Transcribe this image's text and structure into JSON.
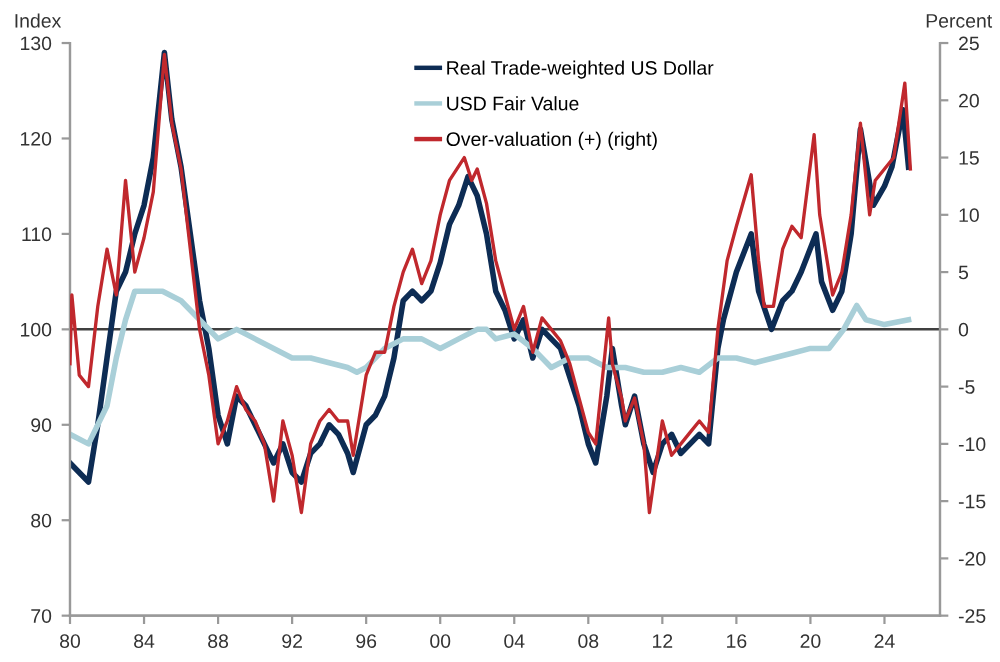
{
  "chart_data": {
    "type": "line",
    "ylabel": "Index",
    "y2label": "Percent",
    "xlim": [
      1980,
      2027
    ],
    "xticks": [
      {
        "value": 1980,
        "label": "80"
      },
      {
        "value": 1984,
        "label": "84"
      },
      {
        "value": 1988,
        "label": "88"
      },
      {
        "value": 1992,
        "label": "92"
      },
      {
        "value": 1996,
        "label": "96"
      },
      {
        "value": 2000,
        "label": "00"
      },
      {
        "value": 2004,
        "label": "04"
      },
      {
        "value": 2008,
        "label": "08"
      },
      {
        "value": 2012,
        "label": "12"
      },
      {
        "value": 2016,
        "label": "16"
      },
      {
        "value": 2020,
        "label": "20"
      },
      {
        "value": 2024,
        "label": "24"
      }
    ],
    "ylim": [
      70,
      130
    ],
    "yticks": [
      70,
      80,
      90,
      100,
      110,
      120,
      130
    ],
    "y2lim": [
      -25,
      25
    ],
    "y2ticks": [
      -25,
      -20,
      -15,
      -10,
      -5,
      0,
      5,
      10,
      15,
      20,
      25
    ],
    "grid": false,
    "legend": "top right",
    "marker": "none",
    "line_style": "solid",
    "ref_lines": [
      {
        "axis": "y",
        "value": 100,
        "color": "#404040"
      }
    ],
    "series": [
      {
        "name": "Real Trade-weighted US Dollar",
        "color": "#0d2c54",
        "x": [
          1980,
          1980.5,
          1981,
          1981.5,
          1982,
          1982.5,
          1983,
          1983.5,
          1984,
          1984.5,
          1985.1,
          1985.5,
          1986,
          1986.5,
          1987,
          1987.5,
          1988,
          1988.5,
          1989,
          1989.5,
          1990,
          1990.5,
          1991,
          1991.5,
          1992,
          1992.5,
          1993,
          1993.5,
          1994,
          1994.5,
          1995,
          1995.3,
          1996,
          1996.5,
          1997,
          1997.5,
          1998,
          1998.5,
          1999,
          1999.5,
          2000,
          2000.5,
          2001,
          2001.5,
          2002,
          2002.5,
          2003,
          2003.5,
          2004,
          2004.5,
          2005,
          2005.5,
          2006,
          2006.5,
          2007,
          2007.5,
          2008,
          2008.4,
          2009,
          2009.3,
          2009.8,
          2010,
          2010.5,
          2011,
          2011.5,
          2012,
          2012.5,
          2013,
          2013.5,
          2014,
          2014.5,
          2015,
          2015.3,
          2016,
          2016.8,
          2017.2,
          2017.9,
          2018.5,
          2019,
          2019.5,
          2020.3,
          2020.6,
          2021.2,
          2021.7,
          2022.2,
          2022.7,
          2023.4,
          2024,
          2024.4,
          2025,
          2025.3
        ],
        "values": [
          86,
          85,
          84,
          90,
          97,
          104,
          106,
          110,
          113,
          118,
          129,
          122,
          117,
          110,
          103,
          98,
          91,
          88,
          93,
          92,
          90,
          88,
          86,
          88,
          85,
          84,
          87,
          88,
          90,
          89,
          87,
          85,
          90,
          91,
          93,
          97,
          103,
          104,
          103,
          104,
          107,
          111,
          113,
          116,
          114,
          110,
          104,
          102,
          99,
          101,
          97,
          100,
          99,
          98,
          95,
          92,
          88,
          86,
          93,
          98,
          92,
          90,
          93,
          88,
          85,
          88,
          89,
          87,
          88,
          89,
          88,
          98,
          101,
          106,
          110,
          104,
          100,
          103,
          104,
          106,
          110,
          105,
          102,
          104,
          110,
          121,
          113,
          115,
          117,
          123,
          117
        ]
      },
      {
        "name": "USD Fair Value",
        "color": "#a9cfd8",
        "x": [
          1980,
          1981,
          1982,
          1982.5,
          1983,
          1983.5,
          1985,
          1986,
          1986.5,
          1987,
          1988,
          1989,
          1990,
          1991,
          1992,
          1993,
          1994,
          1995,
          1995.5,
          1996,
          1997,
          1998,
          1999,
          2000,
          2001,
          2002,
          2002.5,
          2003,
          2004,
          2005,
          2006,
          2007,
          2008,
          2009,
          2010,
          2011,
          2012,
          2013,
          2014,
          2015,
          2016,
          2017,
          2018,
          2019,
          2020,
          2021,
          2021.8,
          2022.5,
          2023,
          2024,
          2025.3
        ],
        "values": [
          89,
          88,
          92,
          97,
          101,
          104,
          104,
          103,
          102,
          101,
          99,
          100,
          99,
          98,
          97,
          97,
          96.5,
          96,
          95.5,
          96,
          98,
          99,
          99,
          98,
          99,
          100,
          100,
          99,
          99.5,
          98,
          96,
          97,
          97,
          96,
          96,
          95.5,
          95.5,
          96,
          95.5,
          97,
          97,
          96.5,
          97,
          97.5,
          98,
          98,
          100,
          102.5,
          101,
          100.5,
          101
        ]
      },
      {
        "name": "Over-valuation (+) (right)",
        "color": "#c0282d",
        "axis": "y2",
        "x": [
          1980,
          1980.1,
          1980.5,
          1981,
          1981.5,
          1982,
          1982.5,
          1983,
          1983.5,
          1984,
          1984.5,
          1985.1,
          1985.5,
          1986,
          1986.5,
          1987,
          1987.5,
          1988,
          1988.5,
          1989,
          1989.5,
          1990,
          1990.5,
          1991,
          1991.5,
          1992,
          1992.5,
          1993,
          1993.5,
          1994,
          1994.5,
          1995,
          1995.3,
          1996,
          1996.5,
          1997,
          1997.5,
          1998,
          1998.5,
          1999,
          1999.5,
          2000,
          2000.5,
          2001.3,
          2001.7,
          2002,
          2002.5,
          2003,
          2003.5,
          2004,
          2004.5,
          2005,
          2005.5,
          2006,
          2006.5,
          2007,
          2007.5,
          2008,
          2008.4,
          2009.1,
          2009.3,
          2009.8,
          2010,
          2010.5,
          2011,
          2011.3,
          2012,
          2012.5,
          2013,
          2013.5,
          2014,
          2014.5,
          2015,
          2015.5,
          2016,
          2016.8,
          2017.2,
          2017.5,
          2018,
          2018.5,
          2019,
          2019.5,
          2020.2,
          2020.5,
          2021.2,
          2021.7,
          2022.2,
          2022.7,
          2023.2,
          2023.5,
          2024,
          2024.5,
          2025.1,
          2025.4
        ],
        "values": [
          -3,
          3,
          -4,
          -5,
          2,
          7,
          3,
          13,
          5,
          8,
          12,
          24,
          18,
          14,
          7,
          0,
          -4,
          -10,
          -8,
          -5,
          -7,
          -8,
          -10,
          -15,
          -8,
          -11,
          -16,
          -10,
          -8,
          -7,
          -8,
          -8,
          -11,
          -4,
          -2,
          -2,
          2,
          5,
          7,
          4,
          6,
          10,
          13,
          15,
          13,
          14,
          11,
          6,
          3,
          0,
          2,
          -2,
          1,
          0,
          -1,
          -3,
          -6,
          -9,
          -10,
          1,
          -3,
          -6,
          -8,
          -6,
          -10,
          -16,
          -8,
          -11,
          -10,
          -9,
          -8,
          -9,
          0,
          6,
          9,
          13.5,
          6,
          2,
          2,
          7,
          9,
          8,
          17,
          10,
          3,
          5,
          10,
          18,
          10,
          13,
          14,
          15,
          21.5,
          14
        ]
      }
    ]
  }
}
